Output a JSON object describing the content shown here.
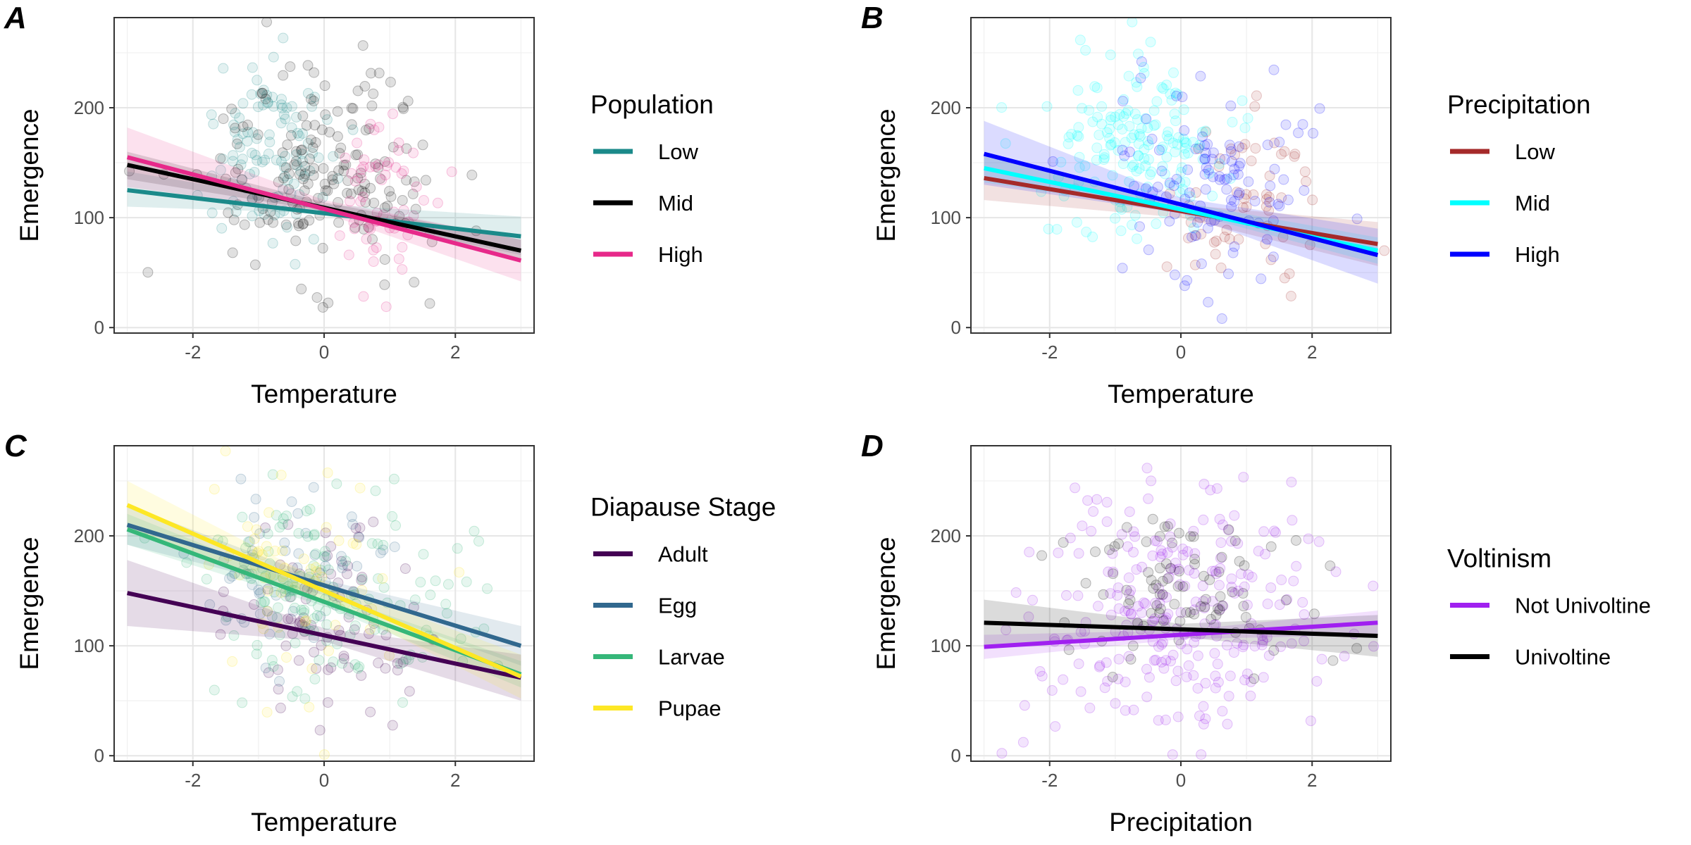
{
  "chart_data": [
    {
      "type": "scatter",
      "panel": "A",
      "xlabel": "Temperature",
      "ylabel": "Emergence",
      "xlim": [
        -3.2,
        3.2
      ],
      "ylim": [
        -5,
        282
      ],
      "xticks": [
        -2,
        0,
        2
      ],
      "yticks": [
        0,
        100,
        200
      ],
      "grid": true,
      "legend": {
        "title": "Population",
        "position": "right"
      },
      "series": [
        {
          "name": "Low",
          "color": "#1b8a8a",
          "line": [
            [
              -3,
              125
            ],
            [
              3,
              83
            ]
          ],
          "band": [
            [
              -3,
              110,
              142
            ],
            [
              0,
              104,
              112
            ],
            [
              3,
              66,
              101
            ]
          ]
        },
        {
          "name": "Mid",
          "color": "#000000",
          "line": [
            [
              -3,
              148
            ],
            [
              3,
              70
            ]
          ],
          "band": [
            [
              -3,
              135,
              160
            ],
            [
              0,
              106,
              114
            ],
            [
              3,
              60,
              80
            ]
          ]
        },
        {
          "name": "High",
          "color": "#e7298a",
          "line": [
            [
              -3,
              155
            ],
            [
              3,
              61
            ]
          ],
          "band": [
            [
              -3,
              128,
              182
            ],
            [
              0,
              104,
              116
            ],
            [
              3,
              42,
              80
            ]
          ]
        }
      ],
      "points": [
        {
          "series": "Low",
          "mean": [
            -0.9,
            165
          ],
          "spread": [
            0.55,
            38
          ],
          "count": 110
        },
        {
          "series": "Mid",
          "mean": [
            0.0,
            140
          ],
          "spread": [
            0.8,
            48
          ],
          "count": 170
        },
        {
          "series": "High",
          "mean": [
            0.9,
            115
          ],
          "spread": [
            0.4,
            38
          ],
          "count": 60
        }
      ]
    },
    {
      "type": "scatter",
      "panel": "B",
      "xlabel": "Temperature",
      "ylabel": "Emergence",
      "xlim": [
        -3.2,
        3.2
      ],
      "ylim": [
        -5,
        282
      ],
      "xticks": [
        -2,
        0,
        2
      ],
      "yticks": [
        0,
        100,
        200
      ],
      "grid": true,
      "legend": {
        "title": "Precipitation",
        "position": "right"
      },
      "series": [
        {
          "name": "Low",
          "color": "#a52a2a",
          "line": [
            [
              -3,
              136
            ],
            [
              3,
              76
            ]
          ],
          "band": [
            [
              -3,
              116,
              156
            ],
            [
              0,
              100,
              112
            ],
            [
              3,
              56,
              96
            ]
          ]
        },
        {
          "name": "Mid",
          "color": "#00ffff",
          "line": [
            [
              -3,
              145
            ],
            [
              3,
              70
            ]
          ],
          "band": [
            [
              -3,
              132,
              158
            ],
            [
              0,
              106,
              114
            ],
            [
              3,
              58,
              82
            ]
          ]
        },
        {
          "name": "High",
          "color": "#0000ff",
          "line": [
            [
              -3,
              158
            ],
            [
              3,
              66
            ]
          ],
          "band": [
            [
              -3,
              130,
              188
            ],
            [
              0,
              104,
              118
            ],
            [
              3,
              40,
              90
            ]
          ]
        }
      ],
      "points": [
        {
          "series": "Low",
          "mean": [
            1.0,
            110
          ],
          "spread": [
            0.6,
            40
          ],
          "count": 60
        },
        {
          "series": "Mid",
          "mean": [
            -0.6,
            165
          ],
          "spread": [
            0.7,
            42
          ],
          "count": 170
        },
        {
          "series": "High",
          "mean": [
            0.3,
            135
          ],
          "spread": [
            0.8,
            45
          ],
          "count": 110
        }
      ]
    },
    {
      "type": "scatter",
      "panel": "C",
      "xlabel": "Temperature",
      "ylabel": "Emergence",
      "xlim": [
        -3.2,
        3.2
      ],
      "ylim": [
        -5,
        282
      ],
      "xticks": [
        -2,
        0,
        2
      ],
      "yticks": [
        0,
        100,
        200
      ],
      "grid": true,
      "legend": {
        "title": "Diapause Stage",
        "position": "right"
      },
      "series": [
        {
          "name": "Adult",
          "color": "#440154",
          "line": [
            [
              -3,
              148
            ],
            [
              3,
              71
            ]
          ],
          "band": [
            [
              -3,
              118,
              178
            ],
            [
              0,
              104,
              116
            ],
            [
              3,
              50,
              92
            ]
          ]
        },
        {
          "name": "Egg",
          "color": "#31688e",
          "line": [
            [
              -3,
              210
            ],
            [
              3,
              100
            ]
          ],
          "band": [
            [
              -3,
              192,
              228
            ],
            [
              0,
              146,
              160
            ],
            [
              3,
              82,
              118
            ]
          ]
        },
        {
          "name": "Larvae",
          "color": "#35b779",
          "line": [
            [
              -3,
              206
            ],
            [
              3,
              74
            ]
          ],
          "band": [
            [
              -3,
              192,
              220
            ],
            [
              0,
              136,
              148
            ],
            [
              3,
              62,
              86
            ]
          ]
        },
        {
          "name": "Pupae",
          "color": "#fde725",
          "line": [
            [
              -3,
              228
            ],
            [
              3,
              72
            ]
          ],
          "band": [
            [
              -3,
              206,
              250
            ],
            [
              0,
              142,
              158
            ],
            [
              3,
              52,
              92
            ]
          ]
        }
      ],
      "points": [
        {
          "series": "Adult",
          "mean": [
            0.2,
            120
          ],
          "spread": [
            0.8,
            40
          ],
          "count": 80
        },
        {
          "series": "Egg",
          "mean": [
            -0.5,
            165
          ],
          "spread": [
            0.7,
            35
          ],
          "count": 60
        },
        {
          "series": "Larvae",
          "mean": [
            0.0,
            150
          ],
          "spread": [
            0.9,
            45
          ],
          "count": 150
        },
        {
          "series": "Pupae",
          "mean": [
            -0.4,
            150
          ],
          "spread": [
            0.7,
            50
          ],
          "count": 60
        }
      ]
    },
    {
      "type": "scatter",
      "panel": "D",
      "xlabel": "Precipitation",
      "ylabel": "Emergence",
      "xlim": [
        -3.2,
        3.2
      ],
      "ylim": [
        -5,
        282
      ],
      "xticks": [
        -2,
        0,
        2
      ],
      "yticks": [
        0,
        100,
        200
      ],
      "grid": true,
      "legend": {
        "title": "Voltinism",
        "position": "right"
      },
      "series": [
        {
          "name": "Not Univoltine",
          "color": "#a020f0",
          "line": [
            [
              -3,
              99
            ],
            [
              3,
              121
            ]
          ],
          "band": [
            [
              -3,
              88,
              110
            ],
            [
              0,
              106,
              114
            ],
            [
              3,
              110,
              132
            ]
          ]
        },
        {
          "name": "Univoltine",
          "color": "#000000",
          "line": [
            [
              -3,
              121
            ],
            [
              3,
              109
            ]
          ],
          "band": [
            [
              -3,
              100,
              142
            ],
            [
              0,
              108,
              120
            ],
            [
              3,
              90,
              128
            ]
          ]
        }
      ],
      "points": [
        {
          "series": "Not Univoltine",
          "mean": [
            0.0,
            130
          ],
          "spread": [
            1.1,
            55
          ],
          "count": 260
        },
        {
          "series": "Univoltine",
          "mean": [
            0.0,
            150
          ],
          "spread": [
            0.9,
            40
          ],
          "count": 90
        }
      ]
    }
  ]
}
